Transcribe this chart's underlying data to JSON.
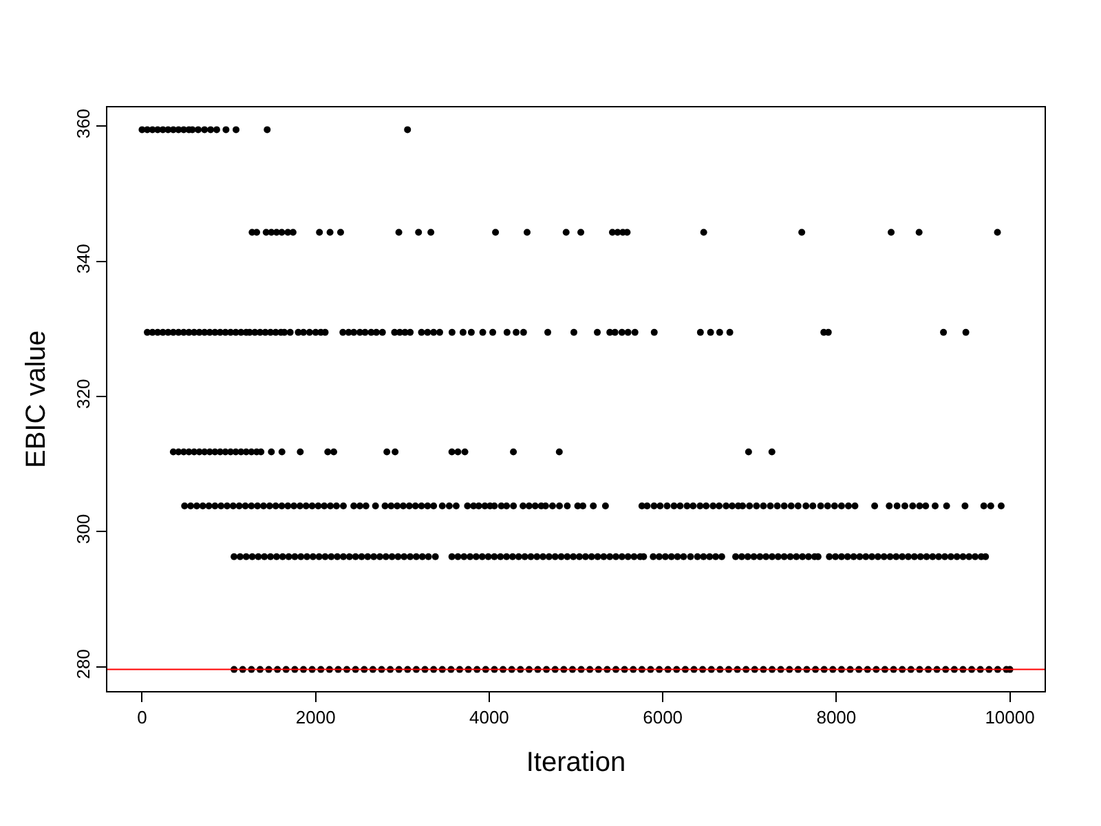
{
  "chart_data": {
    "type": "scatter",
    "xlabel": "Iteration",
    "ylabel": "EBIC value",
    "marker": "circle",
    "xlim": [
      -400,
      10400
    ],
    "ylim": [
      276.4,
      362.8
    ],
    "xticks": [
      0,
      2000,
      4000,
      6000,
      8000,
      10000
    ],
    "yticks": [
      280,
      300,
      320,
      340,
      360
    ],
    "ref_lines": [
      {
        "axis": "y",
        "value": 279.6,
        "color": "#ff0000"
      }
    ],
    "series": [
      {
        "color": "#000000",
        "x": [
          0,
          60,
          120,
          180,
          240,
          300,
          360,
          420,
          480,
          540,
          580,
          647,
          720,
          790,
          860,
          967,
          1083,
          1442,
          3059
        ],
        "values": [
          359.5,
          359.5,
          359.5,
          359.5,
          359.5,
          359.5,
          359.5,
          359.5,
          359.5,
          359.5,
          359.5,
          359.5,
          359.5,
          359.5,
          359.5,
          359.5,
          359.5,
          359.5,
          359.5
        ]
      },
      {
        "color": "#000000",
        "x": [
          1268,
          1321,
          1430,
          1490,
          1550,
          1610,
          1680,
          1740,
          2044,
          2166,
          2288,
          2959,
          3186,
          3328,
          4073,
          4437,
          4887,
          5056,
          5420,
          5480,
          5540,
          5590,
          6472,
          7602,
          8632,
          8954,
          9857
        ],
        "values": [
          344.3,
          344.3,
          344.3,
          344.3,
          344.3,
          344.3,
          344.3,
          344.3,
          344.3,
          344.3,
          344.3,
          344.3,
          344.3,
          344.3,
          344.3,
          344.3,
          344.3,
          344.3,
          344.3,
          344.3,
          344.3,
          344.3,
          344.3,
          344.3,
          344.3,
          344.3,
          344.3
        ]
      },
      {
        "color": "#000000",
        "x": [
          60,
          120,
          180,
          240,
          300,
          360,
          420,
          480,
          540,
          600,
          660,
          720,
          780,
          840,
          900,
          960,
          1020,
          1080,
          1140,
          1200,
          1240,
          1300,
          1360,
          1420,
          1480,
          1540,
          1600,
          1640,
          1707,
          1800,
          1860,
          1930,
          2000,
          2060,
          2110,
          2314,
          2380,
          2440,
          2510,
          2570,
          2640,
          2700,
          2770,
          2910,
          2970,
          3030,
          3090,
          3220,
          3290,
          3360,
          3430,
          3572,
          3699,
          3794,
          3926,
          4041,
          4206,
          4311,
          4396,
          4675,
          4976,
          5246,
          5390,
          5450,
          5530,
          5600,
          5680,
          5902,
          6434,
          6551,
          6656,
          6773,
          7856,
          7908,
          9235,
          9493
        ],
        "values": [
          329.5,
          329.5,
          329.5,
          329.5,
          329.5,
          329.5,
          329.5,
          329.5,
          329.5,
          329.5,
          329.5,
          329.5,
          329.5,
          329.5,
          329.5,
          329.5,
          329.5,
          329.5,
          329.5,
          329.5,
          329.5,
          329.5,
          329.5,
          329.5,
          329.5,
          329.5,
          329.5,
          329.5,
          329.5,
          329.5,
          329.5,
          329.5,
          329.5,
          329.5,
          329.5,
          329.5,
          329.5,
          329.5,
          329.5,
          329.5,
          329.5,
          329.5,
          329.5,
          329.5,
          329.5,
          329.5,
          329.5,
          329.5,
          329.5,
          329.5,
          329.5,
          329.5,
          329.5,
          329.5,
          329.5,
          329.5,
          329.5,
          329.5,
          329.5,
          329.5,
          329.5,
          329.5,
          329.5,
          329.5,
          329.5,
          329.5,
          329.5,
          329.5,
          329.5,
          329.5,
          329.5,
          329.5,
          329.5,
          329.5,
          329.5,
          329.5
        ]
      },
      {
        "color": "#000000",
        "x": [
          360,
          420,
          480,
          540,
          600,
          660,
          720,
          780,
          840,
          900,
          960,
          1020,
          1080,
          1140,
          1200,
          1260,
          1320,
          1370,
          1490,
          1612,
          1823,
          2140,
          2209,
          2821,
          2916,
          3570,
          3640,
          3720,
          4279,
          4808,
          6989,
          7258
        ],
        "values": [
          311.8,
          311.8,
          311.8,
          311.8,
          311.8,
          311.8,
          311.8,
          311.8,
          311.8,
          311.8,
          311.8,
          311.8,
          311.8,
          311.8,
          311.8,
          311.8,
          311.8,
          311.8,
          311.8,
          311.8,
          311.8,
          311.8,
          311.8,
          311.8,
          311.8,
          311.8,
          311.8,
          311.8,
          311.8,
          311.8,
          311.8,
          311.8
        ]
      },
      {
        "color": "#000000",
        "x": [
          490,
          560,
          630,
          700,
          770,
          840,
          910,
          980,
          1050,
          1120,
          1190,
          1260,
          1330,
          1400,
          1470,
          1540,
          1610,
          1680,
          1750,
          1820,
          1890,
          1960,
          2030,
          2100,
          2170,
          2240,
          2320,
          2440,
          2510,
          2580,
          2690,
          2800,
          2870,
          2940,
          3010,
          3080,
          3150,
          3220,
          3290,
          3360,
          3460,
          3540,
          3620,
          3750,
          3820,
          3880,
          3950,
          4010,
          4060,
          4140,
          4200,
          4280,
          4390,
          4460,
          4530,
          4600,
          4650,
          4730,
          4810,
          4900,
          5020,
          5080,
          5200,
          5340,
          5760,
          5820,
          5900,
          5970,
          6050,
          6130,
          6200,
          6280,
          6350,
          6430,
          6500,
          6580,
          6650,
          6730,
          6800,
          6870,
          6920,
          7000,
          7080,
          7160,
          7240,
          7320,
          7400,
          7480,
          7560,
          7650,
          7730,
          7820,
          7900,
          7980,
          8060,
          8140,
          8215,
          8442,
          8610,
          8700,
          8790,
          8880,
          8960,
          9030,
          9139,
          9271,
          9483,
          9700,
          9780,
          9900
        ],
        "values": [
          303.8,
          303.8,
          303.8,
          303.8,
          303.8,
          303.8,
          303.8,
          303.8,
          303.8,
          303.8,
          303.8,
          303.8,
          303.8,
          303.8,
          303.8,
          303.8,
          303.8,
          303.8,
          303.8,
          303.8,
          303.8,
          303.8,
          303.8,
          303.8,
          303.8,
          303.8,
          303.8,
          303.8,
          303.8,
          303.8,
          303.8,
          303.8,
          303.8,
          303.8,
          303.8,
          303.8,
          303.8,
          303.8,
          303.8,
          303.8,
          303.8,
          303.8,
          303.8,
          303.8,
          303.8,
          303.8,
          303.8,
          303.8,
          303.8,
          303.8,
          303.8,
          303.8,
          303.8,
          303.8,
          303.8,
          303.8,
          303.8,
          303.8,
          303.8,
          303.8,
          303.8,
          303.8,
          303.8,
          303.8,
          303.8,
          303.8,
          303.8,
          303.8,
          303.8,
          303.8,
          303.8,
          303.8,
          303.8,
          303.8,
          303.8,
          303.8,
          303.8,
          303.8,
          303.8,
          303.8,
          303.8,
          303.8,
          303.8,
          303.8,
          303.8,
          303.8,
          303.8,
          303.8,
          303.8,
          303.8,
          303.8,
          303.8,
          303.8,
          303.8,
          303.8,
          303.8,
          303.8,
          303.8,
          303.8,
          303.8,
          303.8,
          303.8,
          303.8,
          303.8,
          303.8,
          303.8,
          303.8,
          303.8,
          303.8,
          303.8
        ]
      },
      {
        "color": "#000000",
        "x": [
          1060,
          1130,
          1200,
          1270,
          1340,
          1410,
          1480,
          1550,
          1620,
          1690,
          1760,
          1830,
          1900,
          1970,
          2040,
          2110,
          2180,
          2250,
          2320,
          2390,
          2460,
          2530,
          2600,
          2670,
          2740,
          2810,
          2880,
          2950,
          3020,
          3090,
          3160,
          3230,
          3300,
          3380,
          3570,
          3640,
          3710,
          3780,
          3850,
          3920,
          3990,
          4060,
          4130,
          4200,
          4270,
          4340,
          4410,
          4480,
          4550,
          4620,
          4690,
          4760,
          4830,
          4900,
          4970,
          5040,
          5110,
          5180,
          5250,
          5320,
          5390,
          5460,
          5530,
          5600,
          5670,
          5740,
          5780,
          5890,
          5960,
          6030,
          6100,
          6170,
          6240,
          6320,
          6400,
          6470,
          6540,
          6610,
          6680,
          6840,
          6910,
          6980,
          7050,
          7120,
          7190,
          7260,
          7330,
          7400,
          7470,
          7540,
          7610,
          7680,
          7750,
          7790,
          7920,
          7990,
          8060,
          8130,
          8200,
          8270,
          8340,
          8410,
          8480,
          8550,
          8620,
          8690,
          8760,
          8830,
          8900,
          8970,
          9040,
          9110,
          9180,
          9250,
          9320,
          9390,
          9460,
          9530,
          9600,
          9670,
          9720
        ],
        "values": [
          296.3,
          296.3,
          296.3,
          296.3,
          296.3,
          296.3,
          296.3,
          296.3,
          296.3,
          296.3,
          296.3,
          296.3,
          296.3,
          296.3,
          296.3,
          296.3,
          296.3,
          296.3,
          296.3,
          296.3,
          296.3,
          296.3,
          296.3,
          296.3,
          296.3,
          296.3,
          296.3,
          296.3,
          296.3,
          296.3,
          296.3,
          296.3,
          296.3,
          296.3,
          296.3,
          296.3,
          296.3,
          296.3,
          296.3,
          296.3,
          296.3,
          296.3,
          296.3,
          296.3,
          296.3,
          296.3,
          296.3,
          296.3,
          296.3,
          296.3,
          296.3,
          296.3,
          296.3,
          296.3,
          296.3,
          296.3,
          296.3,
          296.3,
          296.3,
          296.3,
          296.3,
          296.3,
          296.3,
          296.3,
          296.3,
          296.3,
          296.3,
          296.3,
          296.3,
          296.3,
          296.3,
          296.3,
          296.3,
          296.3,
          296.3,
          296.3,
          296.3,
          296.3,
          296.3,
          296.3,
          296.3,
          296.3,
          296.3,
          296.3,
          296.3,
          296.3,
          296.3,
          296.3,
          296.3,
          296.3,
          296.3,
          296.3,
          296.3,
          296.3,
          296.3,
          296.3,
          296.3,
          296.3,
          296.3,
          296.3,
          296.3,
          296.3,
          296.3,
          296.3,
          296.3,
          296.3,
          296.3,
          296.3,
          296.3,
          296.3,
          296.3,
          296.3,
          296.3,
          296.3,
          296.3,
          296.3,
          296.3,
          296.3,
          296.3,
          296.3,
          296.3
        ]
      },
      {
        "color": "#000000",
        "x": [
          1060,
          1160,
          1260,
          1360,
          1460,
          1560,
          1660,
          1760,
          1860,
          1960,
          2060,
          2160,
          2260,
          2360,
          2460,
          2560,
          2660,
          2760,
          2860,
          2960,
          3060,
          3160,
          3260,
          3360,
          3460,
          3560,
          3660,
          3760,
          3860,
          3960,
          4060,
          4160,
          4260,
          4360,
          4460,
          4560,
          4660,
          4760,
          4860,
          4960,
          5060,
          5160,
          5260,
          5360,
          5460,
          5560,
          5660,
          5760,
          5860,
          5960,
          6060,
          6160,
          6260,
          6360,
          6460,
          6560,
          6660,
          6760,
          6860,
          6960,
          7060,
          7160,
          7260,
          7360,
          7460,
          7560,
          7660,
          7760,
          7860,
          7960,
          8060,
          8160,
          8260,
          8360,
          8460,
          8560,
          8660,
          8760,
          8860,
          8960,
          9060,
          9160,
          9260,
          9360,
          9460,
          9560,
          9660,
          9760,
          9860,
          9960,
          10000
        ],
        "values": [
          279.6,
          279.6,
          279.6,
          279.6,
          279.6,
          279.6,
          279.6,
          279.6,
          279.6,
          279.6,
          279.6,
          279.6,
          279.6,
          279.6,
          279.6,
          279.6,
          279.6,
          279.6,
          279.6,
          279.6,
          279.6,
          279.6,
          279.6,
          279.6,
          279.6,
          279.6,
          279.6,
          279.6,
          279.6,
          279.6,
          279.6,
          279.6,
          279.6,
          279.6,
          279.6,
          279.6,
          279.6,
          279.6,
          279.6,
          279.6,
          279.6,
          279.6,
          279.6,
          279.6,
          279.6,
          279.6,
          279.6,
          279.6,
          279.6,
          279.6,
          279.6,
          279.6,
          279.6,
          279.6,
          279.6,
          279.6,
          279.6,
          279.6,
          279.6,
          279.6,
          279.6,
          279.6,
          279.6,
          279.6,
          279.6,
          279.6,
          279.6,
          279.6,
          279.6,
          279.6,
          279.6,
          279.6,
          279.6,
          279.6,
          279.6,
          279.6,
          279.6,
          279.6,
          279.6,
          279.6,
          279.6,
          279.6,
          279.6,
          279.6,
          279.6,
          279.6,
          279.6,
          279.6,
          279.6,
          279.6,
          279.6
        ]
      }
    ]
  }
}
